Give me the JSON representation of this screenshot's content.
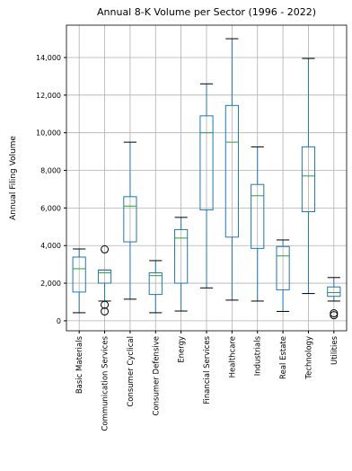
{
  "chart_data": {
    "type": "box",
    "title": "Annual 8-K Volume per Sector (1996 - 2022)",
    "y_label": "Annual Filing Volume",
    "categories": [
      "Basic Materials",
      "Communication Services",
      "Consumer Cyclical",
      "Consumer Defensive",
      "Energy",
      "Financial Services",
      "Healthcare",
      "Industrials",
      "Real Estate",
      "Technology",
      "Utilities"
    ],
    "boxes": [
      {
        "whislo": 430,
        "q1": 1530,
        "med": 2770,
        "q3": 3390,
        "whishi": 3820,
        "fliers": []
      },
      {
        "whislo": 1050,
        "q1": 2000,
        "med": 2550,
        "q3": 2700,
        "whishi": 2700,
        "fliers": [
          3800,
          850,
          500
        ]
      },
      {
        "whislo": 1150,
        "q1": 4200,
        "med": 6100,
        "q3": 6600,
        "whishi": 9500,
        "fliers": []
      },
      {
        "whislo": 430,
        "q1": 1400,
        "med": 2400,
        "q3": 2550,
        "whishi": 3200,
        "fliers": []
      },
      {
        "whislo": 520,
        "q1": 2000,
        "med": 4400,
        "q3": 4850,
        "whishi": 5500,
        "fliers": []
      },
      {
        "whislo": 1750,
        "q1": 5900,
        "med": 10000,
        "q3": 10900,
        "whishi": 12600,
        "fliers": []
      },
      {
        "whislo": 1100,
        "q1": 4450,
        "med": 9500,
        "q3": 11450,
        "whishi": 15000,
        "fliers": []
      },
      {
        "whislo": 1050,
        "q1": 3850,
        "med": 6650,
        "q3": 7250,
        "whishi": 9250,
        "fliers": []
      },
      {
        "whislo": 500,
        "q1": 1650,
        "med": 3450,
        "q3": 3950,
        "whishi": 4300,
        "fliers": []
      },
      {
        "whislo": 1450,
        "q1": 5800,
        "med": 7700,
        "q3": 9250,
        "whishi": 13950,
        "fliers": []
      },
      {
        "whislo": 1050,
        "q1": 1300,
        "med": 1500,
        "q3": 1800,
        "whishi": 2300,
        "fliers": [
          300,
          400
        ]
      }
    ],
    "color": "#1f77b4",
    "median_color": "#2ca02c",
    "ylim": [
      -530,
      15720
    ],
    "yticks": [
      0,
      {
        "value": 2000,
        "label": "2,000"
      },
      {
        "value": 4000,
        "label": "4,000"
      },
      {
        "value": 6000,
        "label": "6,000"
      },
      {
        "value": 8000,
        "label": "8,000"
      },
      {
        "value": 10000,
        "label": "10,000"
      },
      {
        "value": 12000,
        "label": "12,000"
      },
      {
        "value": 14000,
        "label": "14,000"
      }
    ],
    "grid": true
  }
}
